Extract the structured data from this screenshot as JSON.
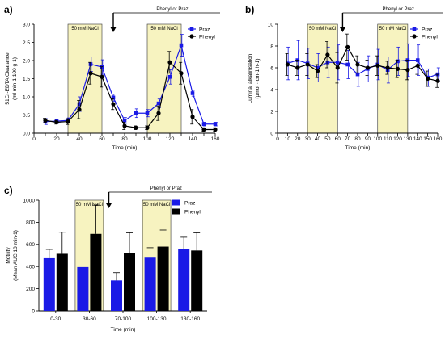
{
  "colors": {
    "praz": "#1a1ae6",
    "phenyl": "#000000",
    "shade": "#f7f3c0",
    "shade_stroke": "#333333"
  },
  "chart_data": [
    {
      "panel": "a)",
      "type": "line",
      "xlabel": "Time (min)",
      "ylabel_main": "51Cr-EDTA Clearance",
      "ylabel_sub": "(ml min-1 100 g-1)",
      "xlim": [
        0,
        160
      ],
      "ylim": [
        0,
        3.0
      ],
      "xticks": [
        0,
        10,
        20,
        30,
        40,
        50,
        60,
        70,
        80,
        90,
        100,
        110,
        120,
        130,
        140,
        150,
        160
      ],
      "xtick_labels": [
        "0",
        "",
        "20",
        "",
        "40",
        "",
        "60",
        "",
        "80",
        "",
        "100",
        "",
        "120",
        "",
        "140",
        "",
        "160"
      ],
      "yticks": [
        0,
        0.5,
        1.0,
        1.5,
        2.0,
        2.5,
        3.0
      ],
      "ytick_labels": [
        "0.0",
        "0.5",
        "1.0",
        "1.5",
        "2.0",
        "2.5",
        "3.0"
      ],
      "shaded_regions": [
        {
          "from": 30,
          "to": 60,
          "label": "50 mM NaCl"
        },
        {
          "from": 100,
          "to": 130,
          "label": "50 mM NaCl"
        }
      ],
      "treatment": {
        "label": "Phenyl or Praz",
        "from": 70,
        "to": 160
      },
      "legend": {
        "position": "top-right",
        "entries": [
          "Praz",
          "Phenyl"
        ]
      },
      "series": [
        {
          "name": "Praz",
          "x": [
            10,
            20,
            30,
            40,
            50,
            60,
            70,
            80,
            90,
            100,
            110,
            120,
            130,
            140,
            150,
            160
          ],
          "values": [
            0.32,
            0.33,
            0.35,
            0.8,
            1.9,
            1.82,
            0.98,
            0.35,
            0.55,
            0.55,
            0.82,
            1.55,
            2.42,
            1.1,
            0.25,
            0.25
          ],
          "errors": [
            0.08,
            0.06,
            0.07,
            0.2,
            0.2,
            0.2,
            0.1,
            0.08,
            0.12,
            0.1,
            0.12,
            0.2,
            0.3,
            0.08,
            0.05,
            0.05
          ]
        },
        {
          "name": "Phenyl",
          "x": [
            10,
            20,
            30,
            40,
            50,
            60,
            70,
            80,
            90,
            100,
            110,
            120,
            130,
            140,
            150,
            160
          ],
          "values": [
            0.35,
            0.3,
            0.32,
            0.65,
            1.65,
            1.55,
            0.8,
            0.2,
            0.15,
            0.15,
            0.55,
            1.95,
            1.65,
            0.45,
            0.1,
            0.1
          ],
          "errors": [
            0.06,
            0.05,
            0.08,
            0.25,
            0.3,
            0.28,
            0.15,
            0.1,
            0.05,
            0.05,
            0.2,
            0.3,
            0.3,
            0.2,
            0.05,
            0.05
          ]
        }
      ]
    },
    {
      "panel": "b)",
      "type": "line",
      "xlabel": "Time (min)",
      "ylabel_main": "Luminal alkalinisation",
      "ylabel_sub": "(µmol · cm-1 h-1)",
      "xlim": [
        0,
        160
      ],
      "ylim": [
        0,
        10
      ],
      "xticks": [
        0,
        10,
        20,
        30,
        40,
        50,
        60,
        70,
        80,
        90,
        100,
        110,
        120,
        130,
        140,
        150,
        160
      ],
      "xtick_labels": [
        "0",
        "10",
        "20",
        "30",
        "40",
        "50",
        "60",
        "70",
        "80",
        "90",
        "100",
        "110",
        "120",
        "130",
        "140",
        "150",
        "160"
      ],
      "yticks": [
        0,
        2,
        4,
        6,
        8,
        10
      ],
      "ytick_labels": [
        "0",
        "2",
        "4",
        "6",
        "8",
        "10"
      ],
      "shaded_regions": [
        {
          "from": 30,
          "to": 60,
          "label": "50 mM NaCl"
        },
        {
          "from": 100,
          "to": 130,
          "label": "50 mM NaCl"
        }
      ],
      "treatment": {
        "label": "Phenyl or Praz",
        "from": 65,
        "to": 160
      },
      "legend": {
        "position": "top-right",
        "entries": [
          "Praz",
          "Phenyl"
        ]
      },
      "series": [
        {
          "name": "Praz",
          "x": [
            10,
            20,
            30,
            40,
            50,
            60,
            70,
            80,
            90,
            100,
            110,
            120,
            130,
            140,
            150,
            160
          ],
          "values": [
            6.4,
            6.7,
            6.4,
            6.0,
            6.5,
            6.5,
            6.3,
            5.4,
            5.9,
            6.3,
            5.8,
            6.6,
            6.7,
            6.7,
            5.1,
            5.4
          ],
          "errors": [
            1.5,
            1.8,
            1.4,
            1.3,
            1.4,
            1.6,
            1.3,
            1.1,
            1.2,
            1.4,
            1.2,
            1.3,
            1.5,
            1.4,
            0.8,
            0.6
          ]
        },
        {
          "name": "Phenyl",
          "x": [
            10,
            20,
            30,
            40,
            50,
            60,
            70,
            80,
            90,
            100,
            110,
            120,
            130,
            140,
            150,
            160
          ],
          "values": [
            6.3,
            6.0,
            6.3,
            5.7,
            7.2,
            6.0,
            7.9,
            6.3,
            6.0,
            6.2,
            6.0,
            5.9,
            5.8,
            6.2,
            5.0,
            4.8
          ],
          "errors": [
            1.0,
            0.7,
            1.0,
            0.6,
            1.2,
            1.4,
            1.2,
            0.8,
            0.7,
            0.9,
            0.6,
            0.8,
            0.9,
            0.8,
            0.7,
            0.6
          ]
        }
      ]
    },
    {
      "panel": "c)",
      "type": "bar",
      "xlabel": "Time (min)",
      "ylabel_main": "Motility",
      "ylabel_sub": "(Mean AUC 10 min-1)",
      "categories": [
        "0-30",
        "30-60",
        "70-100",
        "100-130",
        "130-160"
      ],
      "ylim": [
        0,
        1000
      ],
      "yticks": [
        0,
        200,
        400,
        600,
        800,
        1000
      ],
      "ytick_labels": [
        "0",
        "200",
        "400",
        "600",
        "800",
        "1000"
      ],
      "shaded_categories": [
        {
          "index": 1,
          "label": "50 mM NaCl"
        },
        {
          "index": 3,
          "label": "50 mM NaCl"
        }
      ],
      "treatment": {
        "label": "Phenyl or Praz",
        "from_index": 2,
        "to_index": 4
      },
      "legend": {
        "position": "top-right",
        "entries": [
          "Praz",
          "Phenyl"
        ]
      },
      "series": [
        {
          "name": "Praz",
          "values": [
            475,
            395,
            275,
            480,
            560
          ],
          "errors": [
            80,
            90,
            70,
            90,
            105
          ]
        },
        {
          "name": "Phenyl",
          "values": [
            515,
            695,
            520,
            580,
            545
          ],
          "errors": [
            195,
            260,
            185,
            150,
            160
          ]
        }
      ]
    }
  ]
}
